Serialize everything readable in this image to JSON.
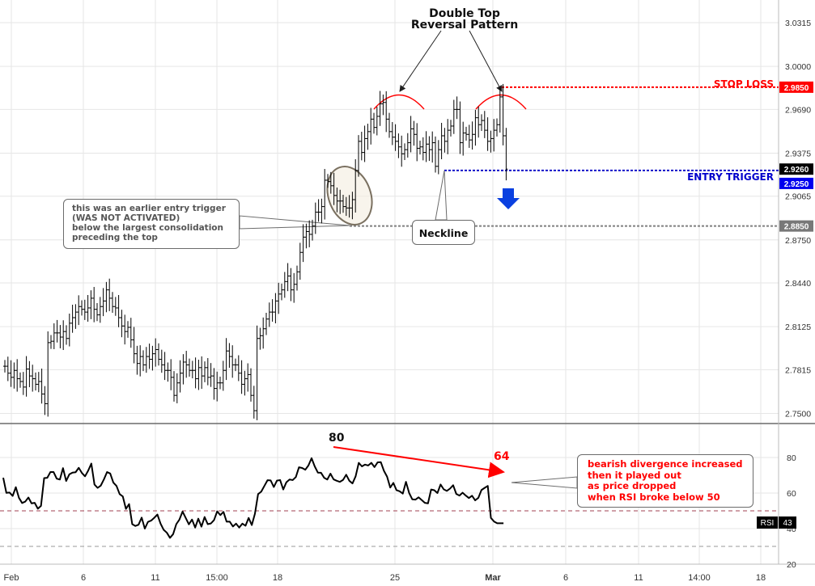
{
  "chart_data": [
    {
      "type": "candlestick",
      "title": "Double Top Reversal Pattern",
      "x_ticks": [
        "Feb",
        "6",
        "11",
        "15:00",
        "18",
        "25",
        "Mar",
        "6",
        "11",
        "14:00",
        "18"
      ],
      "y_ticks": [
        "3.0315",
        "3.0000",
        "2.9690",
        "2.9375",
        "2.9065",
        "2.8750",
        "2.8440",
        "2.8125",
        "2.7815",
        "2.7500"
      ],
      "ylim": [
        2.75,
        3.0315
      ],
      "price_labels": [
        {
          "value": "2.9850",
          "color": "#ff0000"
        },
        {
          "value": "2.9260",
          "color": "#000000"
        },
        {
          "value": "2.9250",
          "color": "#0000ee"
        },
        {
          "value": "2.8850",
          "color": "#787878"
        }
      ],
      "levels": [
        {
          "name": "STOP LOSS",
          "value": 2.985,
          "color": "#ff0000"
        },
        {
          "name": "ENTRY TRIGGER",
          "value": 2.925,
          "color": "#0000cc"
        },
        {
          "name": "earlier entry trigger",
          "value": 2.885,
          "color": "#808080"
        }
      ],
      "annotations": {
        "pattern_title": [
          "Double Top",
          "Reversal Pattern"
        ],
        "stop_loss": "STOP LOSS",
        "entry_trigger": "ENTRY TRIGGER",
        "neckline": "Neckline",
        "earlier_trigger": [
          "this was an earlier entry trigger",
          "(WAS NOT ACTIVATED)",
          "below the largest consolidation",
          "preceding the top"
        ]
      },
      "closes": [
        2.784,
        2.779,
        2.776,
        2.781,
        2.775,
        2.773,
        2.769,
        2.782,
        2.777,
        2.775,
        2.771,
        2.773,
        2.764,
        2.757,
        2.801,
        2.802,
        2.808,
        2.808,
        2.805,
        2.809,
        2.804,
        2.815,
        2.819,
        2.823,
        2.827,
        2.825,
        2.823,
        2.826,
        2.833,
        2.825,
        2.821,
        2.827,
        2.831,
        2.839,
        2.833,
        2.827,
        2.826,
        2.819,
        2.813,
        2.809,
        2.812,
        2.803,
        2.793,
        2.786,
        2.791,
        2.785,
        2.791,
        2.789,
        2.793,
        2.796,
        2.789,
        2.785,
        2.781,
        2.781,
        2.776,
        2.763,
        2.772,
        2.779,
        2.787,
        2.785,
        2.781,
        2.781,
        2.775,
        2.783,
        2.777,
        2.783,
        2.776,
        2.777,
        2.768,
        2.772,
        2.772,
        2.781,
        2.795,
        2.791,
        2.785,
        2.785,
        2.779,
        2.771,
        2.775,
        2.778,
        2.763,
        2.752,
        2.804,
        2.806,
        2.811,
        2.818,
        2.823,
        2.823,
        2.831,
        2.836,
        2.839,
        2.845,
        2.849,
        2.839,
        2.843,
        2.852,
        2.866,
        2.877,
        2.881,
        2.879,
        2.885,
        2.895,
        2.895,
        2.899,
        2.918,
        2.917,
        2.914,
        2.907,
        2.903,
        2.903,
        2.899,
        2.898,
        2.898,
        2.904,
        2.925,
        2.946,
        2.938,
        2.948,
        2.953,
        2.962,
        2.956,
        2.964,
        2.973,
        2.974,
        2.962,
        2.953,
        2.949,
        2.946,
        2.942,
        2.937,
        2.94,
        2.945,
        2.955,
        2.951,
        2.941,
        2.942,
        2.938,
        2.944,
        2.94,
        2.945,
        2.928,
        2.94,
        2.95,
        2.946,
        2.954,
        2.957,
        2.969,
        2.969,
        2.945,
        2.952,
        2.951,
        2.947,
        2.951,
        2.963,
        2.958,
        2.961,
        2.954,
        2.946,
        2.948,
        2.954,
        2.958,
        2.978,
        2.95,
        2.926
      ]
    },
    {
      "type": "line",
      "title": "RSI",
      "indicator_label": "RSI",
      "indicator_value": "43",
      "y_ticks": [
        "80",
        "60",
        "40",
        "20"
      ],
      "ylim": [
        17,
        95
      ],
      "levels": [
        50,
        30
      ],
      "annotations": {
        "high1": "80",
        "high2": "64",
        "divergence": [
          "bearish divergence increased",
          "then it played out",
          "as price dropped",
          "when RSI broke below 50"
        ]
      },
      "values": [
        68.6,
        60.1,
        60.3,
        58.4,
        63.3,
        57.3,
        54.4,
        55.2,
        57.5,
        54.2,
        54.5,
        51.2,
        52.8,
        68.4,
        68.6,
        71.8,
        71.8,
        68.1,
        67.6,
        74.0,
        66.8,
        70.5,
        71.5,
        71.7,
        74.2,
        71.3,
        69.4,
        72.6,
        76.6,
        64.8,
        62.9,
        64.2,
        67.7,
        71.8,
        71.0,
        65.9,
        64.0,
        59.4,
        58.1,
        51.1,
        53.8,
        42.5,
        41.5,
        42.2,
        46.2,
        40.0,
        43.8,
        44.5,
        46.1,
        47.9,
        42.8,
        39.3,
        37.7,
        34.8,
        36.9,
        42.5,
        45.1,
        49.6,
        46.0,
        42.4,
        45.1,
        40.6,
        45.6,
        41.1,
        46.5,
        42.5,
        42.9,
        44.8,
        49.7,
        47.6,
        49.4,
        43.9,
        43.9,
        41.2,
        42.8,
        40.6,
        42.8,
        41.6,
        46.0,
        42.0,
        48.4,
        59.4,
        60.8,
        64.0,
        67.2,
        67.1,
        63.4,
        67.0,
        67.3,
        62.0,
        66.1,
        67.6,
        67.3,
        69.0,
        74.5,
        74.1,
        73.1,
        75.5,
        79.6,
        75.0,
        71.5,
        71.4,
        68.6,
        67.6,
        70.9,
        67.7,
        66.9,
        66.3,
        67.4,
        70.3,
        66.9,
        65.4,
        69.4,
        77.0,
        75.0,
        76.0,
        75.5,
        77.0,
        74.6,
        77.3,
        77.4,
        72.5,
        69.2,
        63.1,
        65.7,
        61.6,
        61.0,
        59.7,
        66.3,
        60.1,
        56.5,
        56.3,
        57.6,
        56.1,
        54.5,
        54.2,
        62.0,
        61.6,
        60.0,
        64.8,
        62.1,
        61.2,
        62.5,
        64.4,
        59.5,
        58.6,
        60.2,
        58.6,
        57.2,
        58.5,
        55.9,
        57.3,
        61.7,
        62.9,
        64.0,
        46.0,
        44.0,
        43.0,
        43.0,
        43.0
      ]
    }
  ],
  "colors": {
    "stop": "#ff0000",
    "entry": "#0000ee",
    "entry_line": "#1010c8",
    "earlier": "#808080",
    "candle": "#000000",
    "grid": "#e6e6e6",
    "axis_text": "#333333",
    "ellipse_fill": "#f4ece0",
    "arrow": "#0a40e0"
  }
}
